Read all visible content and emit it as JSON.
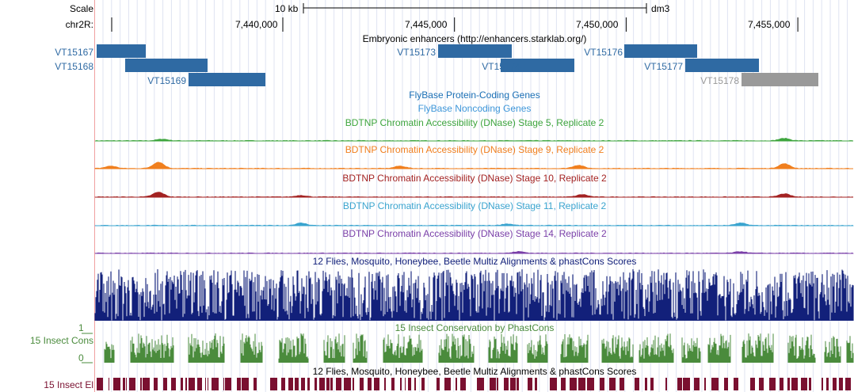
{
  "ruler": {
    "scale_label": "Scale",
    "scale_bar_label": "10 kb",
    "assembly": "dm3",
    "chrom_label": "chr2R:",
    "ticks": [
      {
        "pos": 7440000,
        "label": "7,440,000"
      },
      {
        "pos": 7445000,
        "label": "7,445,000"
      },
      {
        "pos": 7450000,
        "label": "7,450,000"
      },
      {
        "pos": 7455000,
        "label": "7,455,000"
      }
    ]
  },
  "enhancers": {
    "title": "Embryonic enhancers (http://enhancers.starklab.org/)",
    "features": [
      {
        "name": "VT15167",
        "color": "#2f6aa3"
      },
      {
        "name": "VT15168",
        "color": "#2f6aa3"
      },
      {
        "name": "VT15169",
        "color": "#2f6aa3"
      },
      {
        "name": "VT15173",
        "color": "#2f6aa3"
      },
      {
        "name": "VT15174",
        "color": "#2f6aa3"
      },
      {
        "name": "VT15176",
        "color": "#2f6aa3"
      },
      {
        "name": "VT15177",
        "color": "#2f6aa3"
      },
      {
        "name": "VT15178",
        "color": "#999999"
      }
    ]
  },
  "genes": {
    "protein_coding": "FlyBase Protein-Coding Genes",
    "noncoding": "FlyBase Noncoding Genes",
    "protein_coding_color": "#1a6fb5",
    "noncoding_color": "#3d96d9"
  },
  "dnase": [
    {
      "title": "BDTNP Chromatin Accessibility (DNase) Stage 5, Replicate 2",
      "color": "#3ea53e"
    },
    {
      "title": "BDTNP Chromatin Accessibility (DNase) Stage 9, Replicate 2",
      "color": "#f07f1e"
    },
    {
      "title": "BDTNP Chromatin Accessibility (DNase) Stage 10, Replicate 2",
      "color": "#a32222"
    },
    {
      "title": "BDTNP Chromatin Accessibility (DNase) Stage 11, Replicate 2",
      "color": "#3aa4cf"
    },
    {
      "title": "BDTNP Chromatin Accessibility (DNase) Stage 14, Replicate 2",
      "color": "#7a3fa8"
    }
  ],
  "multiz": {
    "title": "12 Flies, Mosquito, Honeybee, Beetle Multiz Alignments & phastCons Scores",
    "color": "#12207a"
  },
  "phastcons": {
    "title": "15 Insect Conservation by PhastCons",
    "side_label": "15 Insect Cons",
    "ymax": "1",
    "ymin": "0",
    "color": "#4a8b3c"
  },
  "elements": {
    "title": "12 Flies, Mosquito, Honeybee, Beetle Multiz Alignments & phastCons Scores",
    "side_label": "15 Insect El",
    "color": "#7a1030"
  }
}
